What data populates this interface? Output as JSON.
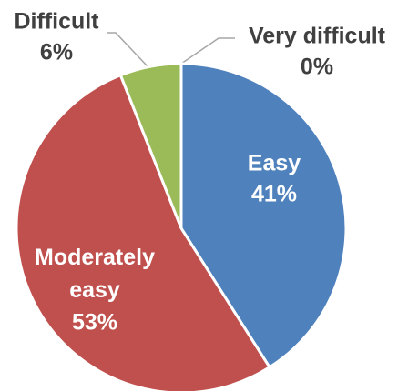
{
  "chart_data": {
    "type": "pie",
    "categories": [
      "Easy",
      "Moderately easy",
      "Difficult",
      "Very difficult"
    ],
    "values": [
      41,
      53,
      6,
      0
    ],
    "value_labels": [
      "41%",
      "53%",
      "6%",
      "0%"
    ],
    "colors": [
      "#4f81bd",
      "#c0504d",
      "#9bbb59",
      "#8064a2"
    ]
  }
}
